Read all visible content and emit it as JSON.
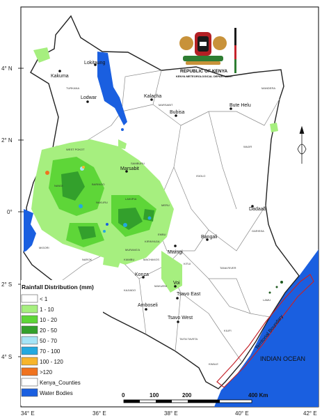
{
  "header": {
    "org": "REPUBLIC OF KENYA",
    "dept": "KENYA METEOROLOGICAL DEPARTMENT"
  },
  "axes": {
    "lat_labels": [
      "4° N",
      "2° N",
      "0°",
      "2° S",
      "4° S"
    ],
    "lon_labels": [
      "34° E",
      "36° E",
      "38° E",
      "40° E",
      "42° E"
    ]
  },
  "towns": [
    "Lokitaung",
    "Kakuma",
    "Lodwar",
    "Kalacha",
    "Bubisa",
    "Bute Helu",
    "Marsabit",
    "Dadaab",
    "Bangali",
    "Mwingi",
    "Konza",
    "Voi",
    "Tsavo East",
    "Amboseli",
    "Tsavo West"
  ],
  "counties": [
    "TURKANA",
    "MARSABIT",
    "MANDERA",
    "WAJIR",
    "WEST POKOT",
    "SAMBURU",
    "ISIOLO",
    "BARINGO",
    "LAIKIPIA",
    "MERU",
    "GARISSA",
    "EMBU",
    "KIRINYAGA",
    "MURANG'A",
    "KIAMBU",
    "MACHAKOS",
    "KITUI",
    "KAJIADO",
    "MAKUENI",
    "TANA RIVER",
    "LAMU",
    "TAITA TAVETA",
    "KILIFI",
    "KWALE",
    "MIGORI",
    "NAROK",
    "NAKURU",
    "NANDI"
  ],
  "sea_label": "INDIAN OCEAN",
  "boundary_label": "Territorial Boundary",
  "legend": {
    "title": "Rainfall Distribution (mm)",
    "items": [
      {
        "label": "< 1",
        "color": "#ffffff"
      },
      {
        "label": "1 - 10",
        "color": "#a6ef7f"
      },
      {
        "label": "10 - 20",
        "color": "#5ed638"
      },
      {
        "label": "20 - 50",
        "color": "#33a02c"
      },
      {
        "label": "50 - 70",
        "color": "#a6e4f6"
      },
      {
        "label": "70 - 100",
        "color": "#23a9df"
      },
      {
        "label": "100 - 120",
        "color": "#f7b52b"
      },
      {
        "label": ">120",
        "color": "#f0731f"
      },
      {
        "label": "Kenya_Counties",
        "color": "#ffffff"
      },
      {
        "label": "Water Bodies",
        "color": "#1a5fe0"
      }
    ]
  },
  "scale_bar": {
    "ticks": [
      "0",
      "100",
      "200",
      "400 Km"
    ]
  },
  "colors": {
    "water": "#1a5fe0",
    "county_line": "#8a8a8a",
    "boundary": "#c4232b"
  }
}
